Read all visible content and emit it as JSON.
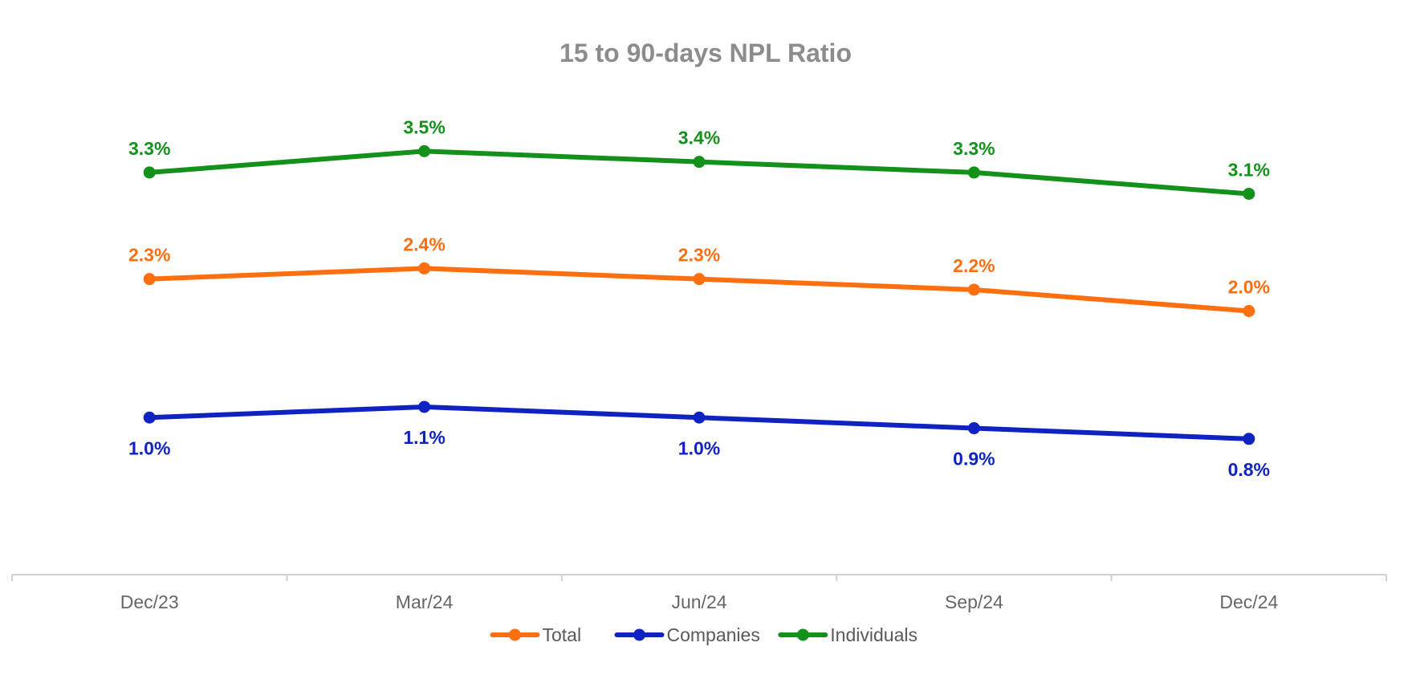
{
  "chart_data": {
    "type": "line",
    "title": "15 to 90-days NPL Ratio",
    "xlabel": "",
    "ylabel": "",
    "categories": [
      "Dec/23",
      "Mar/24",
      "Jun/24",
      "Sep/24",
      "Dec/24"
    ],
    "ylim": [
      0,
      4.0
    ],
    "grid": false,
    "legend_position": "bottom",
    "series": [
      {
        "name": "Total",
        "color": "#ff6f0f",
        "values": [
          2.3,
          2.4,
          2.3,
          2.2,
          2.0
        ],
        "labels": [
          "2.3%",
          "2.4%",
          "2.3%",
          "2.2%",
          "2.0%"
        ],
        "label_placement": "above"
      },
      {
        "name": "Companies",
        "color": "#0f23c3",
        "values": [
          1.0,
          1.1,
          1.0,
          0.9,
          0.8
        ],
        "labels": [
          "1.0%",
          "1.1%",
          "1.0%",
          "0.9%",
          "0.8%"
        ],
        "label_placement": "below"
      },
      {
        "name": "Individuals",
        "color": "#13911b",
        "values": [
          3.3,
          3.5,
          3.4,
          3.3,
          3.1
        ],
        "labels": [
          "3.3%",
          "3.5%",
          "3.4%",
          "3.3%",
          "3.1%"
        ],
        "label_placement": "above"
      }
    ]
  }
}
